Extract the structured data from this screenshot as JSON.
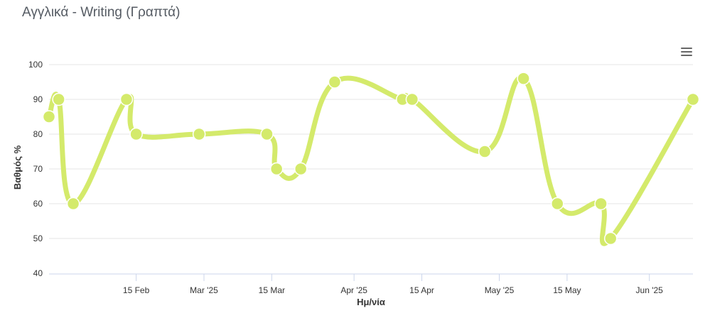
{
  "title": "Αγγλικά - Writing (Γραπτά)",
  "menu_icon": "hamburger-menu-icon",
  "chart_data": {
    "type": "line",
    "title": "Αγγλικά - Writing (Γραπτά)",
    "xlabel": "Ημ/νία",
    "ylabel": "Βαθμός %",
    "ylim": [
      40,
      100
    ],
    "yticks": [
      40,
      50,
      60,
      70,
      80,
      90,
      100
    ],
    "xlim": [
      "2025-01-28",
      "2025-06-10"
    ],
    "xticks": [
      {
        "date": "2025-02-15",
        "label": "15 Feb"
      },
      {
        "date": "2025-03-01",
        "label": "Mar '25"
      },
      {
        "date": "2025-03-15",
        "label": "15 Mar"
      },
      {
        "date": "2025-04-01",
        "label": "Apr '25"
      },
      {
        "date": "2025-04-15",
        "label": "15 Apr"
      },
      {
        "date": "2025-05-01",
        "label": "May '25"
      },
      {
        "date": "2025-05-15",
        "label": "15 May"
      },
      {
        "date": "2025-06-01",
        "label": "Jun '25"
      }
    ],
    "grid": true,
    "color": "#d4ea6b",
    "series": [
      {
        "points": [
          {
            "x": "2025-01-28",
            "y": 85
          },
          {
            "x": "2025-01-30",
            "y": 90
          },
          {
            "x": "2025-02-02",
            "y": 60
          },
          {
            "x": "2025-02-13",
            "y": 90
          },
          {
            "x": "2025-02-15",
            "y": 80
          },
          {
            "x": "2025-02-28",
            "y": 80
          },
          {
            "x": "2025-03-14",
            "y": 80
          },
          {
            "x": "2025-03-16",
            "y": 70
          },
          {
            "x": "2025-03-21",
            "y": 70
          },
          {
            "x": "2025-03-28",
            "y": 95
          },
          {
            "x": "2025-04-11",
            "y": 90
          },
          {
            "x": "2025-04-13",
            "y": 90
          },
          {
            "x": "2025-04-28",
            "y": 75
          },
          {
            "x": "2025-05-06",
            "y": 96
          },
          {
            "x": "2025-05-13",
            "y": 60
          },
          {
            "x": "2025-05-22",
            "y": 60
          },
          {
            "x": "2025-05-24",
            "y": 50
          },
          {
            "x": "2025-06-10",
            "y": 90
          }
        ]
      }
    ]
  }
}
